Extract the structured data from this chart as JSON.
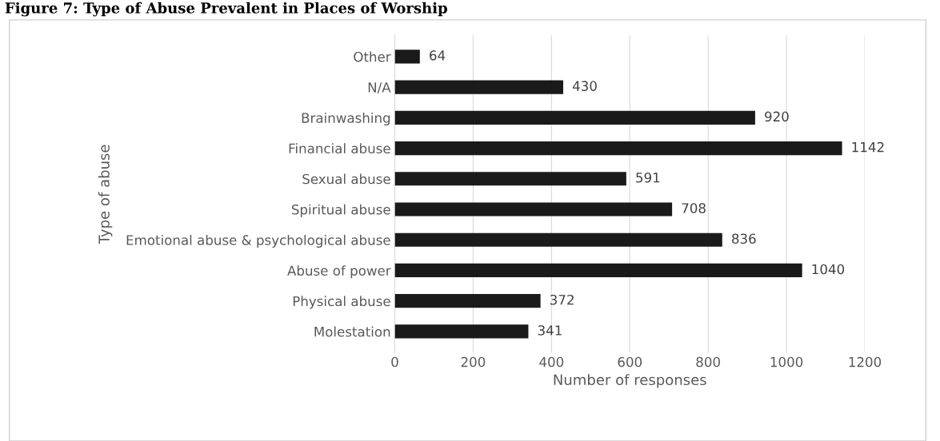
{
  "chart_data": {
    "type": "bar",
    "orientation": "horizontal",
    "title": "Figure 7: Type of Abuse Prevalent in Places of Worship",
    "xlabel": "Number of responses",
    "ylabel": "Type of abuse",
    "categories": [
      "Other",
      "N/A",
      "Brainwashing",
      "Financial abuse",
      "Sexual abuse",
      "Spiritual abuse",
      "Emotional abuse & psychological abuse",
      "Abuse of power",
      "Physical abuse",
      "Molestation"
    ],
    "values": [
      64,
      430,
      920,
      1142,
      591,
      708,
      836,
      1040,
      372,
      341
    ],
    "color": "#1a1a1a",
    "data_labels": true,
    "grid": "x",
    "xlim": [
      0,
      1200
    ],
    "xticks": [
      0,
      200,
      400,
      600,
      800,
      1000,
      1200
    ]
  }
}
